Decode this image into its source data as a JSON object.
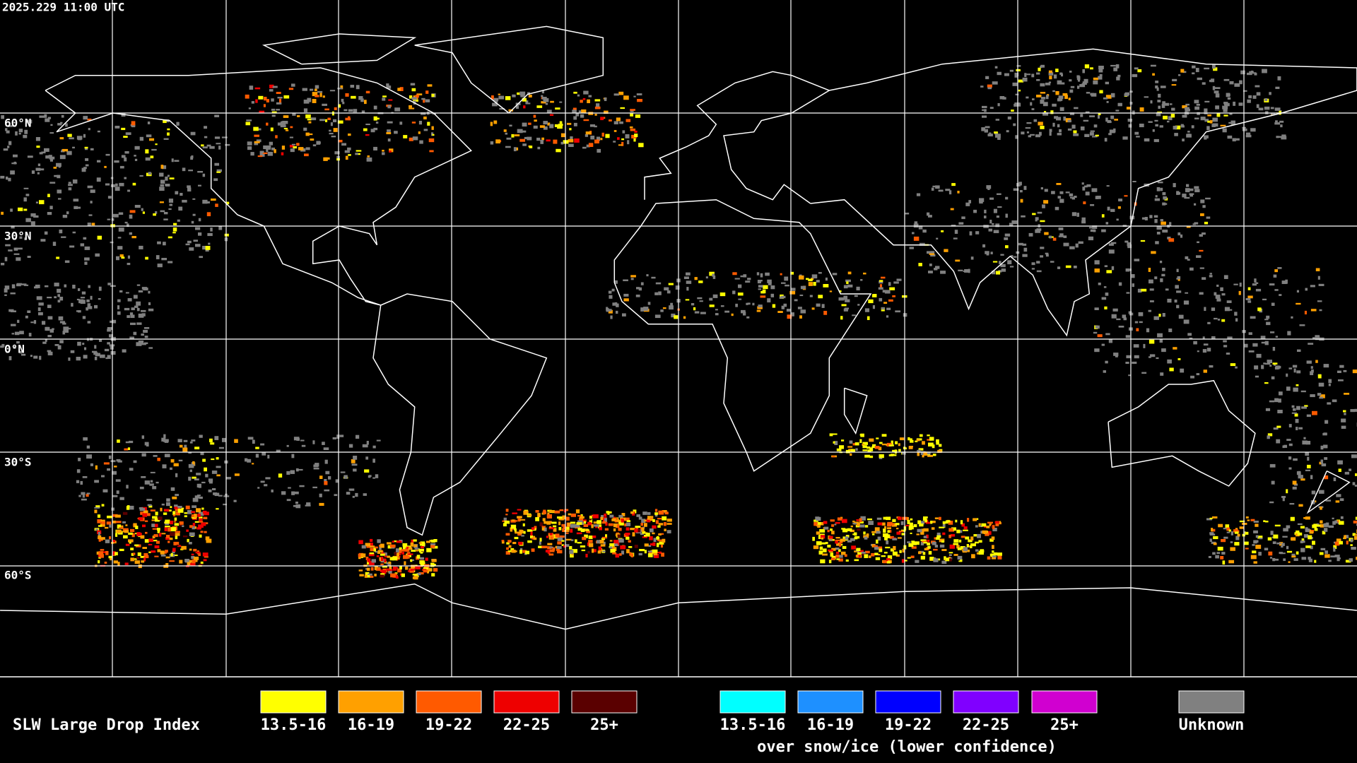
{
  "header": {
    "timestamp": "2025.229 11:00 UTC"
  },
  "map": {
    "lat_labels": [
      "60°N",
      "30°N",
      "0°N",
      "30°S",
      "60°S"
    ]
  },
  "legend": {
    "title": "SLW Large Drop Index",
    "primary": [
      {
        "label": "13.5-16",
        "color": "#ffff00"
      },
      {
        "label": "16-19",
        "color": "#ffa000"
      },
      {
        "label": "19-22",
        "color": "#ff5a00"
      },
      {
        "label": "22-25",
        "color": "#ee0000"
      },
      {
        "label": "25+",
        "color": "#5a0000"
      }
    ],
    "snow_ice": [
      {
        "label": "13.5-16",
        "color": "#00ffff"
      },
      {
        "label": "16-19",
        "color": "#1e90ff"
      },
      {
        "label": "19-22",
        "color": "#0000ff"
      },
      {
        "label": "22-25",
        "color": "#8000ff"
      },
      {
        "label": "25+",
        "color": "#d000d0"
      }
    ],
    "snow_ice_caption": "over snow/ice (lower confidence)",
    "unknown": {
      "label": "Unknown",
      "color": "#808080"
    }
  }
}
